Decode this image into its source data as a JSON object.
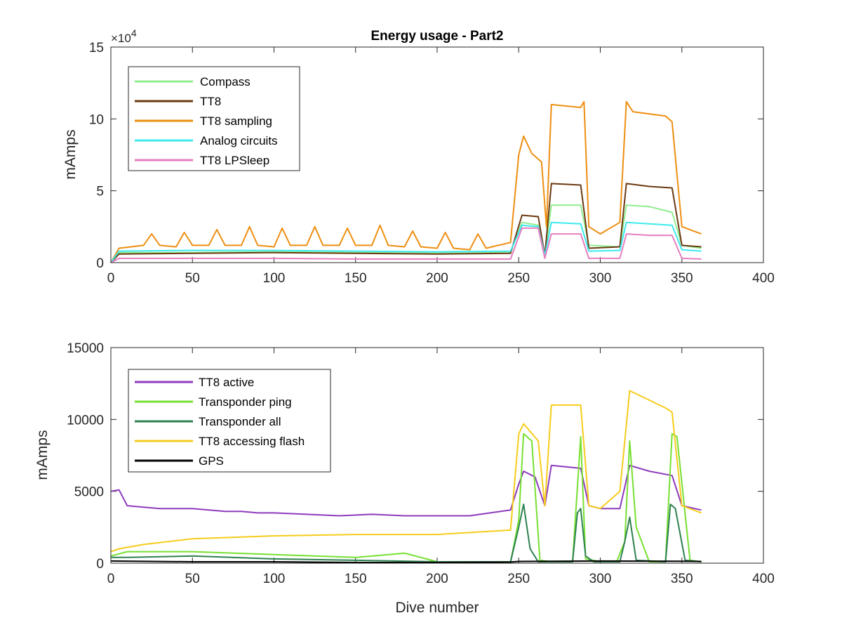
{
  "colors": {
    "compass": "#90ee90",
    "tt8": "#6b3a12",
    "tt8_sampling": "#ed8f12",
    "analog": "#3de9ee",
    "lpsleep": "#e57fc0",
    "tt8_active": "#8e3bbd",
    "ping": "#77e032",
    "transponder_all": "#2e8150",
    "flash": "#f6cc1c",
    "gps": "#000000"
  },
  "chart_data": [
    {
      "type": "line",
      "title": "Energy usage - Part2",
      "xlabel": "",
      "ylabel": "mAmps",
      "xlim": [
        0,
        400
      ],
      "ylim": [
        0,
        150000
      ],
      "x_ticks": [
        0,
        50,
        100,
        150,
        200,
        250,
        300,
        350,
        400
      ],
      "y_ticks": [
        0,
        50000,
        100000,
        150000
      ],
      "y_tick_labels": [
        "0",
        "5",
        "10",
        "15"
      ],
      "y_exponent_label": "×10",
      "y_exponent_power": "4",
      "grid": false,
      "legend_position": "top-left",
      "series": [
        {
          "name": "Compass",
          "color_key": "compass",
          "x": [
            0,
            5,
            50,
            100,
            150,
            200,
            245,
            252,
            262,
            266,
            270,
            288,
            293,
            312,
            316,
            330,
            344,
            350,
            362
          ],
          "y": [
            0,
            7000,
            7000,
            7500,
            7000,
            6500,
            7000,
            28000,
            26000,
            5000,
            40000,
            40000,
            12000,
            11000,
            40000,
            39000,
            35000,
            12000,
            10000
          ]
        },
        {
          "name": "TT8",
          "color_key": "tt8",
          "x": [
            0,
            5,
            50,
            100,
            150,
            200,
            245,
            252,
            262,
            266,
            270,
            288,
            293,
            312,
            316,
            330,
            344,
            350,
            362
          ],
          "y": [
            0,
            6000,
            6500,
            7000,
            6500,
            6000,
            6500,
            33000,
            32000,
            5000,
            55000,
            54000,
            10000,
            11000,
            55000,
            53000,
            52000,
            12000,
            11000
          ]
        },
        {
          "name": "TT8 sampling",
          "color_key": "tt8_sampling",
          "x": [
            0,
            5,
            20,
            25,
            30,
            40,
            45,
            50,
            60,
            65,
            70,
            80,
            85,
            90,
            100,
            105,
            110,
            120,
            125,
            130,
            140,
            145,
            150,
            160,
            165,
            170,
            180,
            185,
            190,
            200,
            205,
            210,
            220,
            225,
            230,
            245,
            250,
            253,
            258,
            264,
            267,
            270,
            288,
            290,
            293,
            300,
            312,
            316,
            320,
            340,
            344,
            350,
            362
          ],
          "y": [
            0,
            10000,
            12000,
            20000,
            12000,
            11000,
            21000,
            12000,
            12000,
            23000,
            12000,
            12000,
            25000,
            12000,
            11000,
            24000,
            12000,
            12000,
            25000,
            12000,
            12000,
            24000,
            12000,
            12000,
            26000,
            12000,
            11000,
            22000,
            11000,
            10000,
            21000,
            10000,
            9000,
            20000,
            10000,
            14000,
            75000,
            88000,
            76000,
            70000,
            25000,
            110000,
            108000,
            112000,
            25000,
            20000,
            28000,
            112000,
            105000,
            102000,
            98000,
            25000,
            20000
          ]
        },
        {
          "name": "Analog circuits",
          "color_key": "analog",
          "x": [
            0,
            5,
            50,
            100,
            150,
            200,
            245,
            252,
            262,
            266,
            270,
            288,
            293,
            312,
            316,
            330,
            344,
            350,
            362
          ],
          "y": [
            0,
            8000,
            8500,
            8500,
            8000,
            7500,
            8000,
            26000,
            25000,
            5000,
            28000,
            27000,
            8000,
            8500,
            28000,
            27000,
            26000,
            9000,
            8000
          ]
        },
        {
          "name": "TT8 LPSleep",
          "color_key": "lpsleep",
          "x": [
            0,
            5,
            50,
            100,
            150,
            200,
            245,
            252,
            262,
            266,
            270,
            288,
            293,
            312,
            316,
            330,
            344,
            350,
            362
          ],
          "y": [
            0,
            3000,
            3000,
            3000,
            2500,
            2500,
            2500,
            24000,
            24000,
            3000,
            20000,
            20000,
            3000,
            3000,
            20000,
            19000,
            19000,
            3000,
            2500
          ]
        }
      ]
    },
    {
      "type": "line",
      "title": "",
      "xlabel": "Dive number",
      "ylabel": "mAmps",
      "xlim": [
        0,
        400
      ],
      "ylim": [
        0,
        15000
      ],
      "x_ticks": [
        0,
        50,
        100,
        150,
        200,
        250,
        300,
        350,
        400
      ],
      "y_ticks": [
        0,
        5000,
        10000,
        15000
      ],
      "y_tick_labels": [
        "0",
        "5000",
        "10000",
        "15000"
      ],
      "grid": false,
      "legend_position": "top-left",
      "series": [
        {
          "name": "TT8 active",
          "color_key": "tt8_active",
          "x": [
            0,
            5,
            10,
            20,
            30,
            40,
            50,
            60,
            70,
            80,
            90,
            100,
            120,
            140,
            160,
            180,
            200,
            220,
            245,
            250,
            253,
            260,
            266,
            270,
            288,
            293,
            300,
            312,
            318,
            330,
            344,
            350,
            362
          ],
          "y": [
            5000,
            5100,
            4000,
            3900,
            3800,
            3800,
            3800,
            3700,
            3600,
            3600,
            3500,
            3500,
            3400,
            3300,
            3400,
            3300,
            3300,
            3300,
            3700,
            5500,
            6400,
            6000,
            4000,
            6800,
            6600,
            4000,
            3800,
            3800,
            6800,
            6400,
            6100,
            4000,
            3700
          ]
        },
        {
          "name": "Transponder ping",
          "color_key": "ping",
          "x": [
            0,
            10,
            50,
            100,
            150,
            180,
            200,
            240,
            245,
            250,
            253,
            258,
            263,
            270,
            283,
            288,
            291,
            300,
            310,
            315,
            318,
            322,
            330,
            340,
            344,
            347,
            355,
            362
          ],
          "y": [
            500,
            800,
            800,
            600,
            400,
            700,
            100,
            50,
            50,
            3000,
            9000,
            8500,
            200,
            100,
            100,
            8800,
            300,
            100,
            100,
            1500,
            8500,
            2500,
            100,
            100,
            9000,
            8800,
            200,
            100
          ]
        },
        {
          "name": "Transponder all",
          "color_key": "transponder_all",
          "x": [
            0,
            10,
            50,
            100,
            150,
            200,
            245,
            250,
            253,
            257,
            262,
            283,
            286,
            288,
            291,
            296,
            312,
            315,
            318,
            322,
            340,
            343,
            346,
            352,
            362
          ],
          "y": [
            400,
            400,
            500,
            300,
            200,
            100,
            100,
            2500,
            4100,
            1000,
            100,
            100,
            3500,
            3800,
            500,
            100,
            100,
            1500,
            3200,
            200,
            100,
            4100,
            3800,
            200,
            100
          ]
        },
        {
          "name": "TT8 accessing flash",
          "color_key": "flash",
          "x": [
            0,
            5,
            20,
            50,
            100,
            150,
            200,
            245,
            250,
            253,
            262,
            266,
            270,
            288,
            293,
            300,
            312,
            318,
            340,
            344,
            350,
            362
          ],
          "y": [
            800,
            1000,
            1300,
            1700,
            1900,
            2000,
            2000,
            2300,
            9000,
            9700,
            8500,
            4000,
            11000,
            11000,
            4000,
            3800,
            5000,
            12000,
            10800,
            10500,
            4000,
            3500
          ]
        },
        {
          "name": "GPS",
          "color_key": "gps",
          "x": [
            0,
            50,
            100,
            150,
            200,
            245,
            250,
            300,
            350,
            362
          ],
          "y": [
            150,
            100,
            100,
            50,
            50,
            80,
            120,
            150,
            130,
            120
          ]
        }
      ]
    }
  ]
}
